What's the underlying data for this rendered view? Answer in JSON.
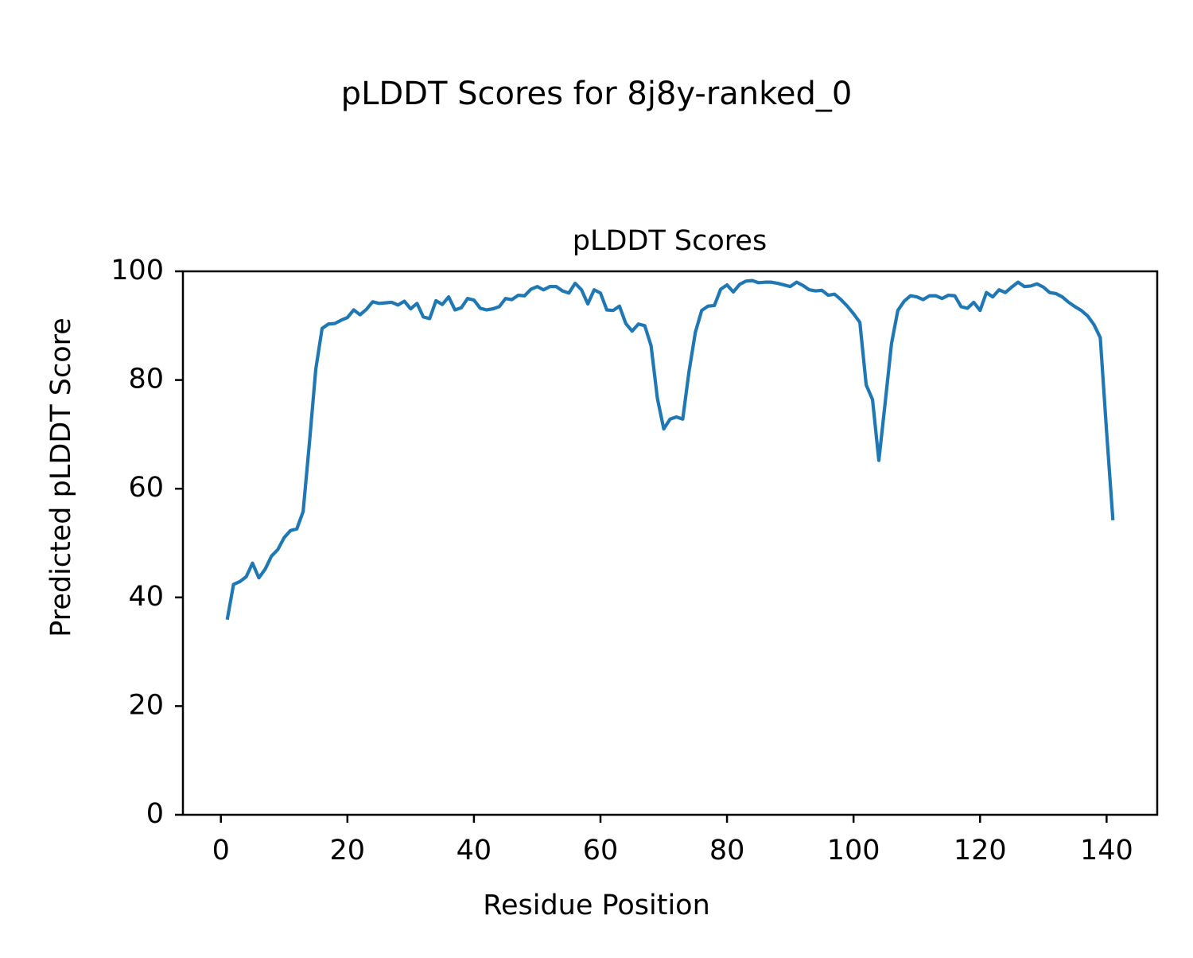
{
  "figure": {
    "suptitle": "pLDDT Scores for 8j8y-ranked_0"
  },
  "chart_data": {
    "type": "line",
    "title": "pLDDT Scores",
    "xlabel": "Residue Position",
    "ylabel": "Predicted pLDDT Score",
    "xlim": [
      -6.0,
      148.0
    ],
    "ylim": [
      0,
      100
    ],
    "xticks": [
      0,
      20,
      40,
      60,
      80,
      100,
      120,
      140
    ],
    "yticks": [
      0,
      20,
      40,
      60,
      80,
      100
    ],
    "grid": false,
    "legend": null,
    "series": [
      {
        "color": "#1f77b4",
        "x": [
          1,
          2,
          3,
          4,
          5,
          6,
          7,
          8,
          9,
          10,
          11,
          12,
          13,
          14,
          15,
          16,
          17,
          18,
          19,
          20,
          21,
          22,
          23,
          24,
          25,
          26,
          27,
          28,
          29,
          30,
          31,
          32,
          33,
          34,
          35,
          36,
          37,
          38,
          39,
          40,
          41,
          42,
          43,
          44,
          45,
          46,
          47,
          48,
          49,
          50,
          51,
          52,
          53,
          54,
          55,
          56,
          57,
          58,
          59,
          60,
          61,
          62,
          63,
          64,
          65,
          66,
          67,
          68,
          69,
          70,
          71,
          72,
          73,
          74,
          75,
          76,
          77,
          78,
          79,
          80,
          81,
          82,
          83,
          84,
          85,
          86,
          87,
          88,
          89,
          90,
          91,
          92,
          93,
          94,
          95,
          96,
          97,
          98,
          99,
          100,
          101,
          102,
          103,
          104,
          105,
          106,
          107,
          108,
          109,
          110,
          111,
          112,
          113,
          114,
          115,
          116,
          117,
          118,
          119,
          120,
          121,
          122,
          123,
          124,
          125,
          126,
          127,
          128,
          129,
          130,
          131,
          132,
          133,
          134,
          135,
          136,
          137,
          138,
          139,
          140,
          141
        ],
        "values": [
          35.9,
          42.4,
          42.9,
          43.8,
          46.3,
          43.6,
          45.2,
          47.6,
          48.8,
          51.0,
          52.3,
          52.6,
          55.8,
          68.5,
          82.0,
          89.5,
          90.3,
          90.4,
          91.0,
          91.5,
          92.9,
          92.0,
          93.0,
          94.4,
          94.1,
          94.2,
          94.3,
          93.8,
          94.5,
          93.1,
          94.1,
          91.6,
          91.3,
          94.6,
          93.9,
          95.3,
          92.9,
          93.3,
          95.0,
          94.7,
          93.2,
          92.9,
          93.1,
          93.5,
          95.0,
          94.8,
          95.6,
          95.5,
          96.7,
          97.2,
          96.6,
          97.2,
          97.2,
          96.4,
          96.0,
          97.8,
          96.6,
          94.0,
          96.6,
          96.0,
          92.9,
          92.8,
          93.6,
          90.4,
          89.0,
          90.3,
          90.0,
          86.3,
          76.6,
          71.0,
          72.8,
          73.2,
          72.8,
          81.6,
          88.8,
          92.8,
          93.6,
          93.7,
          96.7,
          97.5,
          96.2,
          97.6,
          98.2,
          98.3,
          97.9,
          98.0,
          98.0,
          97.8,
          97.5,
          97.2,
          98.0,
          97.4,
          96.6,
          96.4,
          96.5,
          95.6,
          95.8,
          94.8,
          93.6,
          92.2,
          90.6,
          79.1,
          76.4,
          65.2,
          75.8,
          86.7,
          92.8,
          94.5,
          95.5,
          95.3,
          94.8,
          95.5,
          95.5,
          95.0,
          95.6,
          95.5,
          93.5,
          93.2,
          94.3,
          92.8,
          96.1,
          95.3,
          96.6,
          96.1,
          97.1,
          98.0,
          97.2,
          97.3,
          97.7,
          97.1,
          96.1,
          95.9,
          95.3,
          94.3,
          93.5,
          92.8,
          91.8,
          90.2,
          87.8,
          70.5,
          54.2
        ]
      }
    ]
  }
}
